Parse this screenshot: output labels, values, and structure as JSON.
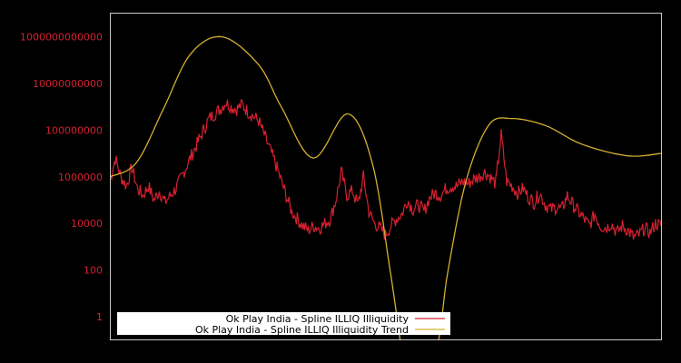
{
  "chart_data": {
    "type": "line",
    "title": "",
    "xlabel": "",
    "ylabel": "",
    "yscale": "log",
    "ylim": [
      0.3,
      10000000000000
    ],
    "y_ticks": [
      "1",
      "100",
      "10000",
      "1000000",
      "100000000",
      "10000000000",
      "1000000000000"
    ],
    "x_ticks": [],
    "grid": false,
    "legend_position": "lower left",
    "background": "#000000",
    "axis_color": "#c8c8c8",
    "tick_color": "#d62030",
    "series": [
      {
        "name": "Ok Play India - Spline ILLIQ Illiquidity",
        "color": "#d62030",
        "x_frac": [
          0.0,
          0.01,
          0.02,
          0.03,
          0.04,
          0.05,
          0.06,
          0.07,
          0.08,
          0.09,
          0.1,
          0.11,
          0.12,
          0.13,
          0.14,
          0.15,
          0.16,
          0.17,
          0.18,
          0.19,
          0.2,
          0.21,
          0.22,
          0.23,
          0.24,
          0.25,
          0.26,
          0.27,
          0.28,
          0.29,
          0.3,
          0.31,
          0.32,
          0.33,
          0.34,
          0.35,
          0.36,
          0.37,
          0.38,
          0.39,
          0.4,
          0.41,
          0.42,
          0.43,
          0.44,
          0.45,
          0.46,
          0.47,
          0.48,
          0.49,
          0.5,
          0.51,
          0.52,
          0.53,
          0.54,
          0.55,
          0.56,
          0.57,
          0.58,
          0.59,
          0.6,
          0.61,
          0.62,
          0.63,
          0.64,
          0.65,
          0.66,
          0.67,
          0.68,
          0.69,
          0.7,
          0.71,
          0.72,
          0.73,
          0.74,
          0.75,
          0.76,
          0.77,
          0.78,
          0.79,
          0.8,
          0.81,
          0.82,
          0.83,
          0.84,
          0.85,
          0.86,
          0.87,
          0.88,
          0.89,
          0.9,
          0.91,
          0.92,
          0.93,
          0.94,
          0.95,
          0.96,
          0.97,
          0.98,
          0.99,
          1.0
        ],
        "log10_values": [
          5.8,
          6.8,
          6.0,
          5.6,
          6.4,
          5.5,
          5.2,
          5.6,
          5.0,
          5.4,
          4.9,
          5.2,
          5.5,
          6.0,
          6.5,
          7.0,
          7.5,
          8.0,
          8.5,
          8.7,
          8.9,
          9.2,
          9.0,
          8.9,
          9.1,
          8.8,
          8.6,
          8.4,
          7.8,
          7.2,
          6.6,
          5.9,
          5.2,
          4.5,
          4.2,
          3.9,
          3.7,
          3.9,
          3.8,
          4.0,
          4.2,
          5.0,
          6.2,
          5.2,
          5.4,
          4.8,
          6.0,
          4.5,
          4.0,
          3.8,
          3.5,
          3.9,
          4.2,
          4.4,
          5.0,
          4.6,
          4.8,
          4.5,
          5.1,
          5.3,
          5.2,
          5.5,
          5.6,
          5.6,
          5.8,
          5.7,
          5.9,
          6.0,
          6.2,
          6.0,
          5.7,
          7.8,
          5.8,
          5.6,
          5.3,
          5.5,
          5.1,
          4.9,
          5.3,
          4.8,
          4.6,
          4.7,
          4.6,
          5.2,
          4.8,
          4.5,
          4.2,
          3.9,
          4.4,
          3.9,
          3.8,
          4.0,
          3.6,
          3.9,
          3.7,
          3.4,
          3.5,
          3.8,
          3.6,
          4.0,
          3.9
        ]
      },
      {
        "name": "Ok Play India - Spline ILLIQ Illiquidity Trend",
        "color": "#d4b030",
        "x_frac": [
          0.0,
          0.048,
          0.097,
          0.146,
          0.204,
          0.27,
          0.311,
          0.369,
          0.431,
          0.476,
          0.509,
          0.53,
          0.538,
          0.59,
          0.613,
          0.646,
          0.687,
          0.728,
          0.79,
          0.856,
          0.939,
          1.0
        ],
        "log10_values": [
          6.0,
          6.6,
          8.9,
          11.25,
          12.0,
          10.8,
          9.0,
          6.8,
          8.7,
          6.6,
          1.9,
          -1.5,
          -2.0,
          -1.5,
          1.9,
          5.8,
          8.2,
          8.5,
          8.2,
          7.4,
          6.9,
          7.0
        ]
      }
    ]
  },
  "legend": {
    "items": [
      {
        "label": "Ok Play India - Spline ILLIQ Illiquidity",
        "color": "#d62030"
      },
      {
        "label": "Ok Play India - Spline ILLIQ Illiquidity Trend",
        "color": "#d4b030"
      }
    ]
  }
}
